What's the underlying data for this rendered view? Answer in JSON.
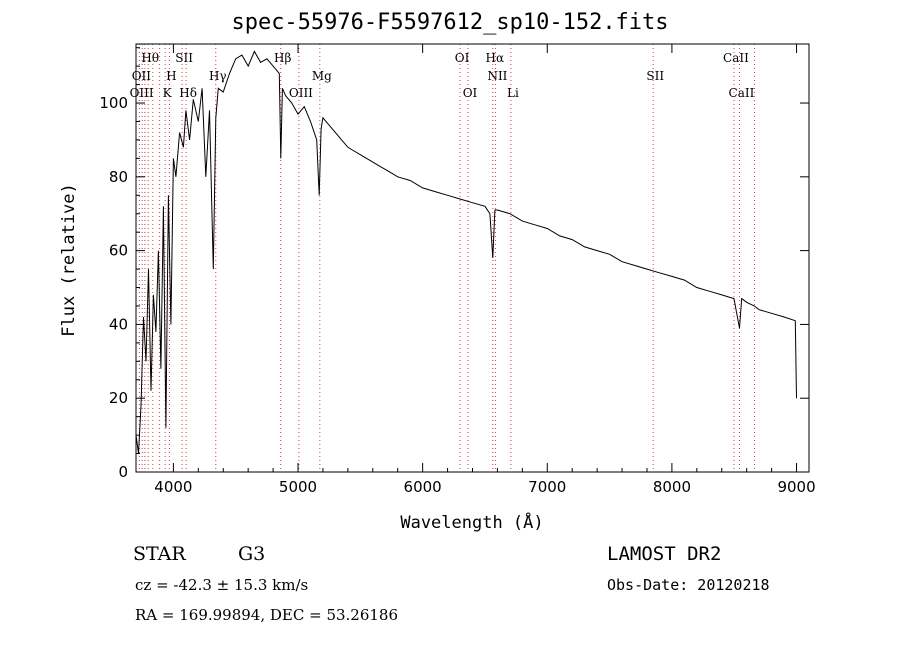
{
  "title": "spec-55976-F5597612_sp10-152.fits",
  "info": {
    "object_class": "STAR",
    "subclass": "G3",
    "survey": "LAMOST DR2",
    "cz": "cz = -42.3 ± 15.3 km/s",
    "obs_date": "Obs-Date: 20120218",
    "radec": "RA = 169.99894, DEC =  53.26186"
  },
  "chart_data": {
    "type": "line",
    "title": "spec-55976-F5597612_sp10-152.fits",
    "xlabel": "Wavelength (Å)",
    "ylabel": "Flux (relative)",
    "xlim": [
      3700,
      9100
    ],
    "ylim": [
      0,
      116
    ],
    "xticks": [
      4000,
      5000,
      6000,
      7000,
      8000,
      9000
    ],
    "yticks": [
      0,
      20,
      40,
      60,
      80,
      100
    ],
    "grid": false,
    "series": [
      {
        "x": [
          3700,
          3720,
          3740,
          3760,
          3780,
          3800,
          3820,
          3840,
          3860,
          3880,
          3900,
          3920,
          3940,
          3960,
          3980,
          4000,
          4020,
          4050,
          4080,
          4100,
          4130,
          4160,
          4200,
          4230,
          4260,
          4290,
          4320,
          4340,
          4360,
          4400,
          4450,
          4500,
          4550,
          4600,
          4650,
          4700,
          4750,
          4800,
          4850,
          4862,
          4875,
          4900,
          4950,
          5000,
          5050,
          5100,
          5150,
          5170,
          5185,
          5200,
          5250,
          5300,
          5350,
          5400,
          5450,
          5500,
          5550,
          5600,
          5650,
          5700,
          5750,
          5800,
          5900,
          6000,
          6100,
          6200,
          6300,
          6400,
          6500,
          6540,
          6563,
          6580,
          6600,
          6700,
          6800,
          6900,
          7000,
          7100,
          7200,
          7300,
          7400,
          7500,
          7600,
          7700,
          7800,
          7900,
          8000,
          8100,
          8200,
          8300,
          8400,
          8498,
          8520,
          8542,
          8560,
          8600,
          8662,
          8700,
          8800,
          8900,
          8990,
          9000
        ],
        "values": [
          10,
          5,
          18,
          42,
          30,
          55,
          22,
          48,
          38,
          60,
          28,
          72,
          12,
          75,
          40,
          85,
          80,
          92,
          88,
          98,
          90,
          101,
          95,
          104,
          80,
          98,
          55,
          96,
          104,
          103,
          108,
          112,
          113,
          110,
          114,
          111,
          112,
          110,
          108,
          85,
          104,
          102,
          100,
          97,
          99,
          95,
          90,
          75,
          93,
          96,
          94,
          92,
          90,
          88,
          87,
          86,
          85,
          84,
          83,
          82,
          81,
          80,
          79,
          77,
          76,
          75,
          74,
          73,
          72,
          70,
          58,
          71,
          71,
          70,
          68,
          67,
          66,
          64,
          63,
          61,
          60,
          59,
          57,
          56,
          55,
          54,
          53,
          52,
          50,
          49,
          48,
          47,
          43,
          39,
          47,
          46,
          45,
          44,
          43,
          42,
          41,
          20
        ]
      }
    ],
    "line_labels": [
      {
        "name": "Hθ",
        "x": 3798,
        "row": 1
      },
      {
        "name": "SII",
        "x": 4070,
        "row": 1
      },
      {
        "name": "Hβ",
        "x": 4861,
        "row": 1
      },
      {
        "name": "OI",
        "x": 6300,
        "row": 1
      },
      {
        "name": "Hα",
        "x": 6563,
        "row": 1
      },
      {
        "name": "CaII",
        "x": 8498,
        "row": 1
      },
      {
        "name": "OII",
        "x": 3727,
        "row": 2
      },
      {
        "name": "H",
        "x": 3968,
        "row": 2
      },
      {
        "name": "Hγ",
        "x": 4340,
        "row": 2
      },
      {
        "name": "Mg",
        "x": 5175,
        "row": 2
      },
      {
        "name": "NII",
        "x": 6584,
        "row": 2
      },
      {
        "name": "SII",
        "x": 7850,
        "row": 2
      },
      {
        "name": "OIII",
        "x": 3729,
        "row": 3
      },
      {
        "name": "K",
        "x": 3934,
        "row": 3
      },
      {
        "name": "Hδ",
        "x": 4102,
        "row": 3
      },
      {
        "name": "OIII",
        "x": 5007,
        "row": 3
      },
      {
        "name": "OI",
        "x": 6364,
        "row": 3
      },
      {
        "name": "Li",
        "x": 6708,
        "row": 3
      },
      {
        "name": "CaII",
        "x": 8542,
        "row": 3
      }
    ],
    "marker_lines": [
      3727,
      3750,
      3771,
      3798,
      3835,
      3889,
      3934,
      3968,
      4070,
      4102,
      4340,
      4861,
      5007,
      5175,
      6300,
      6364,
      6563,
      6584,
      6708,
      7850,
      8498,
      8542,
      8662
    ]
  }
}
